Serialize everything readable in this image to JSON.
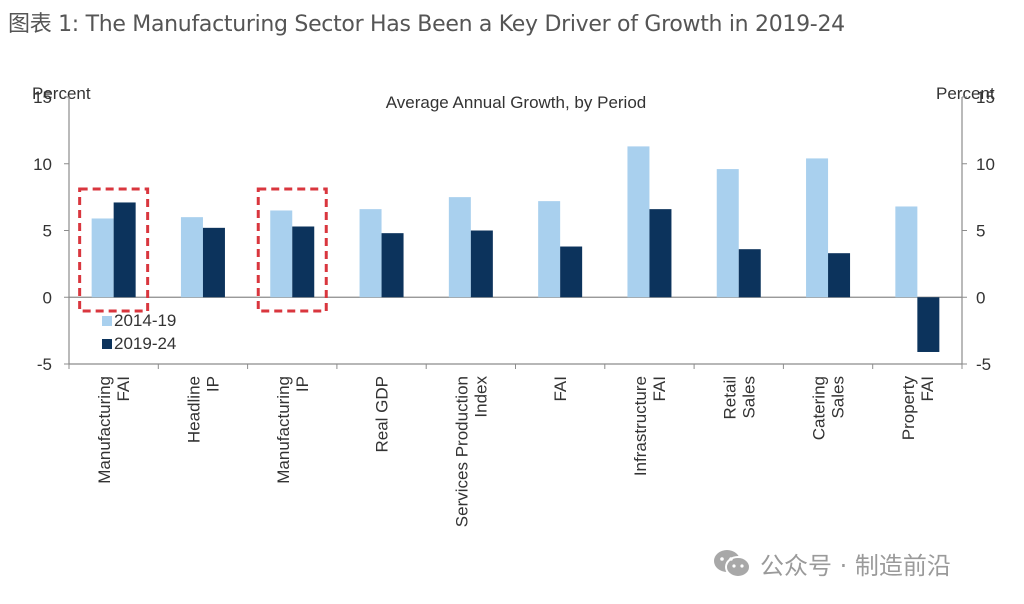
{
  "figure": {
    "title": "图表 1: The Manufacturing Sector Has Been a Key Driver of Growth in 2019-24"
  },
  "watermark": {
    "icon": "wechat-icon",
    "text": "公众号 · 制造前沿"
  },
  "colors": {
    "series_2014_19": "#a9d0ee",
    "series_2019_24": "#0c335c",
    "highlight_box": "#d9363e",
    "axis": "#8c8c8c",
    "text": "#333333"
  },
  "chart_data": {
    "type": "bar",
    "title": "Average Annual Growth, by Period",
    "ylabel_left": "Percent",
    "ylabel_right": "Percent",
    "xlabel": "",
    "ylim": [
      -5,
      15
    ],
    "yticks": [
      -5,
      0,
      5,
      10,
      15
    ],
    "grid": false,
    "legend_position": "bottom-left",
    "categories": [
      [
        "Manufacturing",
        "FAI"
      ],
      [
        "Headline",
        "IP"
      ],
      [
        "Manufacturing",
        "IP"
      ],
      [
        "Real GDP"
      ],
      [
        "Services Production",
        "Index"
      ],
      [
        "FAI"
      ],
      [
        "Infrastructure",
        "FAI"
      ],
      [
        "Retail",
        "Sales"
      ],
      [
        "Catering",
        "Sales"
      ],
      [
        "Property",
        "FAI"
      ]
    ],
    "series": [
      {
        "name": "2014-19",
        "values": [
          5.9,
          6.0,
          6.5,
          6.6,
          7.5,
          7.2,
          11.3,
          9.6,
          10.4,
          6.8
        ]
      },
      {
        "name": "2019-24",
        "values": [
          7.1,
          5.2,
          5.3,
          4.8,
          5.0,
          3.8,
          6.6,
          3.6,
          3.3,
          -4.1
        ]
      }
    ],
    "highlighted_categories": [
      0,
      2
    ]
  }
}
